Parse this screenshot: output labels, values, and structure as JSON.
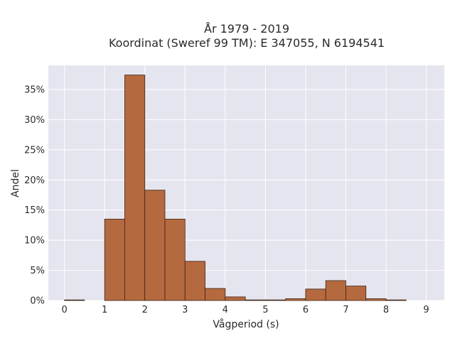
{
  "chart_data": {
    "type": "bar",
    "title_line1": "År 1979 - 2019",
    "title_line2": "Koordinat (Sweref 99 TM): E 347055, N 6194541",
    "xlabel": "Vågperiod (s)",
    "ylabel": "Andel",
    "xlim": [
      -0.4,
      9.45
    ],
    "ylim": [
      0,
      0.39
    ],
    "x_ticks": [
      0,
      1,
      2,
      3,
      4,
      5,
      6,
      7,
      8,
      9
    ],
    "y_ticks": [
      0,
      0.05,
      0.1,
      0.15,
      0.2,
      0.25,
      0.3,
      0.35
    ],
    "y_tick_labels": [
      "0%",
      "5%",
      "10%",
      "15%",
      "20%",
      "25%",
      "30%",
      "35%"
    ],
    "bin_width": 0.5,
    "bins": [
      {
        "start": 0.0,
        "value": 0.001
      },
      {
        "start": 0.5,
        "value": 0.0
      },
      {
        "start": 1.0,
        "value": 0.135
      },
      {
        "start": 1.5,
        "value": 0.374
      },
      {
        "start": 2.0,
        "value": 0.183
      },
      {
        "start": 2.5,
        "value": 0.135
      },
      {
        "start": 3.0,
        "value": 0.065
      },
      {
        "start": 3.5,
        "value": 0.02
      },
      {
        "start": 4.0,
        "value": 0.006
      },
      {
        "start": 4.5,
        "value": 0.001
      },
      {
        "start": 5.0,
        "value": 0.001
      },
      {
        "start": 5.5,
        "value": 0.003
      },
      {
        "start": 6.0,
        "value": 0.019
      },
      {
        "start": 6.5,
        "value": 0.033
      },
      {
        "start": 7.0,
        "value": 0.024
      },
      {
        "start": 7.5,
        "value": 0.003
      },
      {
        "start": 8.0,
        "value": 0.001
      }
    ],
    "grid": true,
    "colors": {
      "bar_fill": "#b5693f",
      "bar_stroke": "#3d2416",
      "plot_background": "#e5e5ef",
      "grid": "#ffffff"
    }
  }
}
